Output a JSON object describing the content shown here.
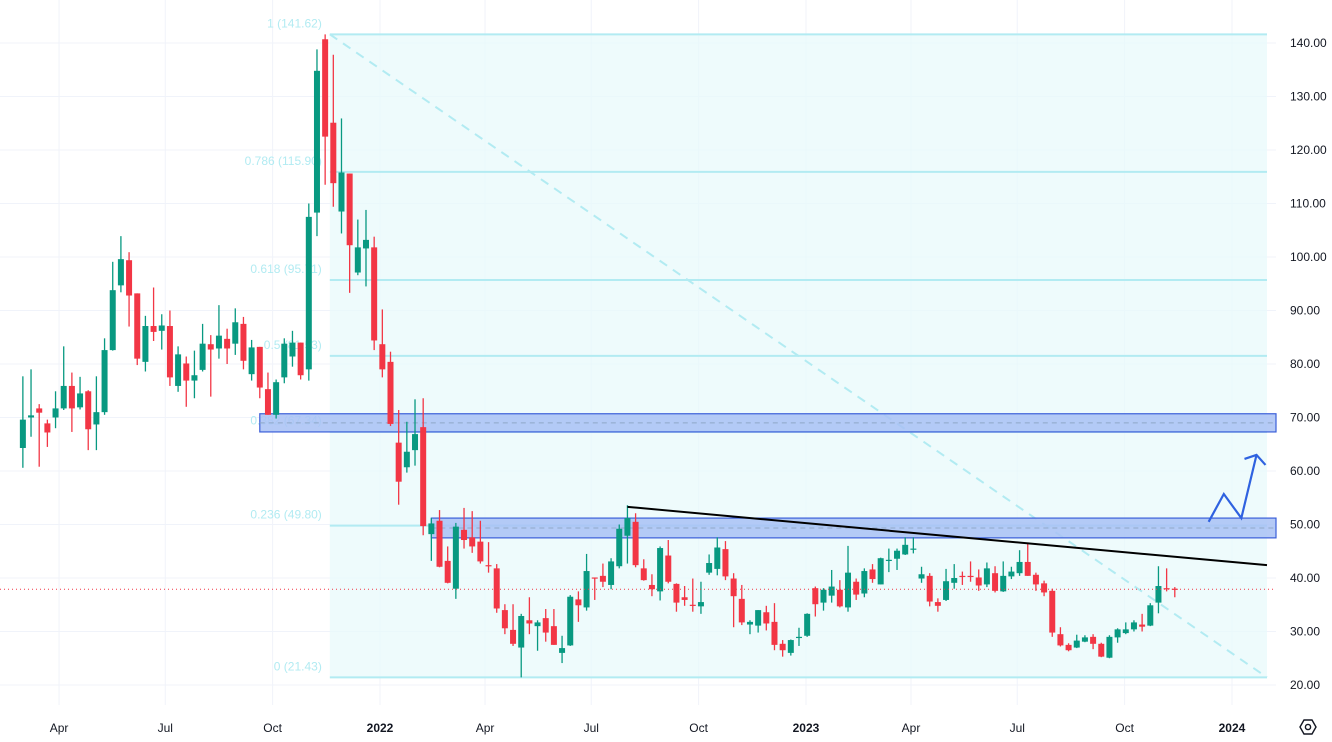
{
  "chart_data": {
    "type": "candlestick",
    "interval": "weekly",
    "ylim": [
      16,
      146
    ],
    "grid": true,
    "colors": {
      "up": "#089981",
      "down": "#f23645",
      "fib": "#b2ebf2",
      "fib_fill": "#e8f9fb",
      "zone_fill": "#a8c1f5",
      "zone_border": "#3b5fd9",
      "trendline": "#000000",
      "projection": "#2f62e0",
      "last_price": "#f23645"
    },
    "y_ticks": [
      "20.00",
      "30.00",
      "40.00",
      "50.00",
      "60.00",
      "70.00",
      "80.00",
      "90.00",
      "100.00",
      "110.00",
      "120.00",
      "130.00",
      "140.00"
    ],
    "x_ticks": [
      {
        "label": "Apr",
        "date": "2021-04-01",
        "year": false
      },
      {
        "label": "Jul",
        "date": "2021-07-01",
        "year": false
      },
      {
        "label": "Oct",
        "date": "2021-10-01",
        "year": false
      },
      {
        "label": "2022",
        "date": "2022-01-01",
        "year": true
      },
      {
        "label": "Apr",
        "date": "2022-04-01",
        "year": false
      },
      {
        "label": "Jul",
        "date": "2022-07-01",
        "year": false
      },
      {
        "label": "Oct",
        "date": "2022-10-01",
        "year": false
      },
      {
        "label": "2023",
        "date": "2023-01-01",
        "year": true
      },
      {
        "label": "Apr",
        "date": "2023-04-01",
        "year": false
      },
      {
        "label": "Jul",
        "date": "2023-07-01",
        "year": false
      },
      {
        "label": "Oct",
        "date": "2023-10-01",
        "year": false
      },
      {
        "label": "2024",
        "date": "2024-01-01",
        "year": true
      }
    ],
    "candles_columns": [
      "date",
      "open",
      "high",
      "low",
      "close"
    ],
    "candles": [
      [
        "2021-03-01",
        64.3,
        77.7,
        60.6,
        69.6
      ],
      [
        "2021-03-08",
        70.0,
        79.0,
        66.4,
        70.4
      ],
      [
        "2021-03-15",
        71.7,
        72.5,
        60.8,
        70.9
      ],
      [
        "2021-03-22",
        68.9,
        69.6,
        64.5,
        67.2
      ],
      [
        "2021-03-29",
        70.0,
        74.9,
        68.0,
        71.7
      ],
      [
        "2021-04-05",
        71.7,
        83.3,
        71.4,
        75.9
      ],
      [
        "2021-04-12",
        75.9,
        78.4,
        67.3,
        71.7
      ],
      [
        "2021-04-19",
        71.9,
        77.6,
        71.5,
        74.5
      ],
      [
        "2021-04-26",
        74.9,
        75.1,
        63.9,
        67.8
      ],
      [
        "2021-05-03",
        68.7,
        77.7,
        63.9,
        71.0
      ],
      [
        "2021-05-10",
        71.0,
        84.8,
        70.5,
        82.6
      ],
      [
        "2021-05-17",
        82.6,
        99.1,
        82.5,
        93.8
      ],
      [
        "2021-05-24",
        94.7,
        103.9,
        93.4,
        99.6
      ],
      [
        "2021-05-31",
        99.4,
        100.9,
        87.0,
        92.8
      ],
      [
        "2021-06-07",
        93.2,
        93.2,
        79.8,
        81.0
      ],
      [
        "2021-06-14",
        80.4,
        89.0,
        78.6,
        87.1
      ],
      [
        "2021-06-21",
        87.1,
        94.3,
        84.3,
        86.0
      ],
      [
        "2021-06-28",
        86.2,
        89.3,
        82.7,
        87.2
      ],
      [
        "2021-07-05",
        87.1,
        90.0,
        75.9,
        77.5
      ],
      [
        "2021-07-12",
        75.9,
        83.3,
        74.8,
        81.8
      ],
      [
        "2021-07-19",
        80.1,
        81.4,
        72.0,
        76.9
      ],
      [
        "2021-07-26",
        76.9,
        82.5,
        73.6,
        77.9
      ],
      [
        "2021-08-02",
        78.9,
        87.5,
        78.6,
        83.8
      ],
      [
        "2021-08-09",
        83.7,
        85.4,
        73.9,
        82.7
      ],
      [
        "2021-08-16",
        82.9,
        91.0,
        81.0,
        85.3
      ],
      [
        "2021-08-23",
        84.7,
        86.6,
        80.0,
        82.9
      ],
      [
        "2021-08-30",
        83.8,
        90.4,
        81.7,
        87.8
      ],
      [
        "2021-09-06",
        87.5,
        88.8,
        79.0,
        80.6
      ],
      [
        "2021-09-13",
        78.1,
        84.5,
        76.9,
        83.1
      ],
      [
        "2021-09-20",
        83.2,
        83.2,
        73.6,
        75.6
      ],
      [
        "2021-09-27",
        75.3,
        78.4,
        70.5,
        70.5
      ],
      [
        "2021-10-04",
        70.5,
        77.1,
        69.8,
        76.6
      ],
      [
        "2021-10-11",
        77.5,
        84.8,
        76.4,
        83.8
      ],
      [
        "2021-10-18",
        81.4,
        86.2,
        79.5,
        84.0
      ],
      [
        "2021-10-25",
        84.0,
        84.0,
        77.1,
        77.9
      ],
      [
        "2021-11-01",
        79.0,
        110.0,
        76.9,
        107.5
      ],
      [
        "2021-11-08",
        108.3,
        138.8,
        103.9,
        134.8
      ],
      [
        "2021-11-15",
        140.7,
        141.62,
        113.5,
        122.5
      ],
      [
        "2021-11-22",
        125.1,
        137.8,
        109.4,
        113.8
      ],
      [
        "2021-11-29",
        108.5,
        125.9,
        104.4,
        115.8
      ],
      [
        "2021-12-06",
        115.6,
        115.6,
        93.3,
        102.2
      ],
      [
        "2021-12-13",
        97.1,
        107.0,
        96.6,
        101.8
      ],
      [
        "2021-12-20",
        101.6,
        108.8,
        94.5,
        103.2
      ],
      [
        "2021-12-27",
        101.8,
        103.8,
        82.6,
        84.4
      ],
      [
        "2022-01-03",
        83.7,
        90.2,
        77.5,
        79.0
      ],
      [
        "2022-01-10",
        80.4,
        82.3,
        68.4,
        68.8
      ],
      [
        "2022-01-17",
        65.3,
        71.4,
        53.7,
        58.0
      ],
      [
        "2022-01-24",
        60.7,
        69.2,
        59.7,
        63.6
      ],
      [
        "2022-01-31",
        63.9,
        73.4,
        61.0,
        66.9
      ],
      [
        "2022-02-07",
        68.2,
        73.6,
        48.0,
        49.7
      ],
      [
        "2022-02-14",
        48.2,
        51.2,
        43.2,
        50.2
      ],
      [
        "2022-02-21",
        50.7,
        52.7,
        42.0,
        42.1
      ],
      [
        "2022-02-28",
        43.2,
        45.9,
        39.0,
        39.1
      ],
      [
        "2022-03-07",
        38.0,
        50.3,
        36.1,
        49.6
      ],
      [
        "2022-03-14",
        49.0,
        53.1,
        45.5,
        47.1
      ],
      [
        "2022-03-21",
        47.6,
        52.5,
        44.7,
        45.9
      ],
      [
        "2022-03-28",
        46.8,
        50.7,
        42.7,
        43.1
      ],
      [
        "2022-04-04",
        42.4,
        46.7,
        41.0,
        42.3
      ],
      [
        "2022-04-11",
        41.8,
        42.6,
        33.5,
        34.3
      ],
      [
        "2022-04-18",
        34.0,
        35.1,
        29.5,
        30.6
      ],
      [
        "2022-04-25",
        30.3,
        35.1,
        27.3,
        27.7
      ],
      [
        "2022-05-02",
        27.0,
        33.3,
        21.43,
        32.9
      ],
      [
        "2022-05-09",
        32.1,
        36.4,
        29.5,
        31.5
      ],
      [
        "2022-05-16",
        31.0,
        32.1,
        26.4,
        31.7
      ],
      [
        "2022-05-23",
        32.5,
        34.2,
        28.1,
        29.8
      ],
      [
        "2022-05-30",
        31.0,
        34.2,
        27.5,
        27.5
      ],
      [
        "2022-06-06",
        26.0,
        29.2,
        24.1,
        26.9
      ],
      [
        "2022-06-13",
        27.4,
        36.8,
        27.3,
        36.5
      ],
      [
        "2022-06-20",
        36.0,
        37.5,
        31.8,
        34.9
      ],
      [
        "2022-06-27",
        34.5,
        44.5,
        33.9,
        41.3
      ],
      [
        "2022-07-04",
        40.1,
        40.1,
        35.9,
        40.0
      ],
      [
        "2022-07-11",
        40.4,
        42.7,
        38.3,
        39.3
      ],
      [
        "2022-07-18",
        38.7,
        43.7,
        37.9,
        43.1
      ],
      [
        "2022-07-25",
        42.2,
        50.0,
        41.8,
        49.2
      ],
      [
        "2022-08-01",
        47.9,
        53.6,
        42.7,
        51.2
      ],
      [
        "2022-08-08",
        50.5,
        52.1,
        42.0,
        42.4
      ],
      [
        "2022-08-15",
        41.8,
        43.5,
        39.5,
        39.6
      ],
      [
        "2022-08-22",
        38.7,
        40.7,
        36.6,
        37.9
      ],
      [
        "2022-08-29",
        37.5,
        45.9,
        35.8,
        45.6
      ],
      [
        "2022-09-05",
        44.2,
        47.1,
        39.0,
        39.3
      ],
      [
        "2022-09-12",
        38.9,
        39.0,
        33.7,
        35.4
      ],
      [
        "2022-09-19",
        36.4,
        38.5,
        34.8,
        35.9
      ],
      [
        "2022-09-26",
        35.0,
        39.9,
        33.7,
        34.9
      ],
      [
        "2022-10-03",
        34.7,
        39.3,
        33.3,
        35.5
      ],
      [
        "2022-10-10",
        41.0,
        44.4,
        40.6,
        42.8
      ],
      [
        "2022-10-17",
        41.7,
        47.6,
        40.5,
        45.7
      ],
      [
        "2022-10-24",
        45.4,
        46.9,
        39.6,
        40.3
      ],
      [
        "2022-10-31",
        39.9,
        40.9,
        30.8,
        36.6
      ],
      [
        "2022-11-07",
        36.1,
        38.7,
        31.2,
        31.7
      ],
      [
        "2022-11-14",
        31.3,
        32.1,
        29.5,
        31.8
      ],
      [
        "2022-11-21",
        31.1,
        34.0,
        29.8,
        34.0
      ],
      [
        "2022-11-28",
        33.6,
        34.8,
        30.2,
        31.5
      ],
      [
        "2022-12-05",
        31.8,
        35.3,
        26.5,
        27.5
      ],
      [
        "2022-12-12",
        27.7,
        28.4,
        25.3,
        26.5
      ],
      [
        "2022-12-19",
        26.0,
        28.5,
        25.5,
        28.4
      ],
      [
        "2022-12-26",
        29.0,
        30.7,
        27.3,
        29.0
      ],
      [
        "2023-01-02",
        29.2,
        33.4,
        29.0,
        33.3
      ],
      [
        "2023-01-09",
        38.1,
        38.4,
        32.8,
        35.1
      ],
      [
        "2023-01-16",
        35.4,
        38.1,
        33.9,
        37.8
      ],
      [
        "2023-01-23",
        36.7,
        41.5,
        35.4,
        38.4
      ],
      [
        "2023-01-30",
        37.8,
        39.6,
        34.5,
        34.7
      ],
      [
        "2023-02-06",
        34.5,
        46.0,
        33.7,
        41.0
      ],
      [
        "2023-02-13",
        39.3,
        39.9,
        35.9,
        36.9
      ],
      [
        "2023-02-20",
        37.1,
        41.8,
        36.4,
        41.3
      ],
      [
        "2023-02-27",
        41.6,
        42.6,
        39.1,
        39.8
      ],
      [
        "2023-03-06",
        38.8,
        43.8,
        38.8,
        43.7
      ],
      [
        "2023-03-13",
        43.3,
        45.5,
        41.1,
        43.4
      ],
      [
        "2023-03-20",
        43.6,
        45.5,
        41.5,
        45.1
      ],
      [
        "2023-03-27",
        44.4,
        47.6,
        44.3,
        46.2
      ],
      [
        "2023-04-03",
        45.5,
        47.6,
        44.6,
        45.5
      ],
      [
        "2023-04-10",
        39.9,
        42.1,
        39.1,
        40.7
      ],
      [
        "2023-04-17",
        40.4,
        40.9,
        34.7,
        35.6
      ],
      [
        "2023-04-24",
        35.5,
        36.2,
        33.7,
        34.8
      ],
      [
        "2023-05-01",
        35.9,
        41.7,
        35.7,
        39.4
      ],
      [
        "2023-05-08",
        39.1,
        42.6,
        38.0,
        40.0
      ],
      [
        "2023-05-15",
        40.4,
        41.2,
        38.7,
        40.3
      ],
      [
        "2023-05-22",
        40.4,
        43.1,
        39.3,
        40.3
      ],
      [
        "2023-05-29",
        40.1,
        41.6,
        37.6,
        38.6
      ],
      [
        "2023-06-05",
        38.8,
        42.9,
        38.3,
        41.8
      ],
      [
        "2023-06-12",
        40.9,
        42.2,
        37.3,
        37.6
      ],
      [
        "2023-06-19",
        37.5,
        43.1,
        37.4,
        40.4
      ],
      [
        "2023-06-26",
        40.3,
        42.1,
        39.8,
        41.2
      ],
      [
        "2023-07-03",
        40.9,
        45.2,
        40.4,
        43.0
      ],
      [
        "2023-07-10",
        43.0,
        46.4,
        40.4,
        40.4
      ],
      [
        "2023-07-17",
        40.6,
        41.0,
        37.6,
        38.8
      ],
      [
        "2023-07-24",
        39.0,
        39.5,
        36.6,
        37.3
      ],
      [
        "2023-07-31",
        37.6,
        38.0,
        29.0,
        29.8
      ],
      [
        "2023-08-07",
        29.5,
        30.8,
        27.2,
        27.4
      ],
      [
        "2023-08-14",
        27.5,
        27.8,
        26.3,
        26.5
      ],
      [
        "2023-08-21",
        27.0,
        29.4,
        26.9,
        28.3
      ],
      [
        "2023-08-28",
        28.1,
        29.3,
        28.0,
        28.9
      ],
      [
        "2023-09-04",
        29.0,
        29.5,
        26.7,
        27.7
      ],
      [
        "2023-09-11",
        27.7,
        27.9,
        25.2,
        25.3
      ],
      [
        "2023-09-18",
        25.1,
        29.3,
        25.0,
        29.0
      ],
      [
        "2023-09-25",
        28.9,
        30.6,
        27.9,
        30.4
      ],
      [
        "2023-10-02",
        29.7,
        31.7,
        29.5,
        30.4
      ],
      [
        "2023-10-09",
        30.4,
        32.1,
        30.0,
        31.7
      ],
      [
        "2023-10-16",
        31.3,
        33.3,
        30.0,
        30.9
      ],
      [
        "2023-10-23",
        31.1,
        35.3,
        31.0,
        34.9
      ],
      [
        "2023-10-30",
        35.4,
        42.2,
        33.4,
        38.5
      ],
      [
        "2023-11-06",
        38.1,
        41.8,
        37.5,
        37.9
      ],
      [
        "2023-11-13",
        38.0,
        38.3,
        36.4,
        37.9
      ]
    ],
    "last_price": 37.9,
    "fibonacci": {
      "start": {
        "date": "2021-11-19",
        "price": 141.62
      },
      "end": {
        "date": "2024-01-31",
        "price": 21.43
      },
      "levels": [
        {
          "ratio": 1,
          "price": 141.62,
          "label": "1 (141.62)"
        },
        {
          "ratio": 0.786,
          "price": 115.9,
          "label": "0.786 (115.90)"
        },
        {
          "ratio": 0.618,
          "price": 95.71,
          "label": "0.618 (95.71)"
        },
        {
          "ratio": 0.5,
          "price": 81.53,
          "label": "0.5 (81.53)"
        },
        {
          "ratio": 0.382,
          "price": 67.34,
          "label": "0.382 (67.34)"
        },
        {
          "ratio": 0.236,
          "price": 49.8,
          "label": "0.236 (49.80)"
        },
        {
          "ratio": 0,
          "price": 21.43,
          "label": "0 (21.43)"
        }
      ]
    },
    "zones": [
      {
        "start": "2021-09-20",
        "end": "2024-02-07",
        "top": 70.7,
        "bottom": 67.3
      },
      {
        "start": "2022-02-14",
        "end": "2024-02-07",
        "top": 51.2,
        "bottom": 47.5
      }
    ],
    "trendline": {
      "start": {
        "date": "2022-08-01",
        "price": 53.3
      },
      "end": {
        "date": "2024-01-31",
        "price": 42.4
      }
    },
    "projection_path": [
      {
        "date": "2023-12-12",
        "price": 50.5
      },
      {
        "date": "2023-12-25",
        "price": 55.7
      },
      {
        "date": "2024-01-09",
        "price": 51.2
      },
      {
        "date": "2024-01-22",
        "price": 63.0
      }
    ]
  },
  "toolbar": {
    "settings_icon": "gear-hexagon-icon"
  }
}
